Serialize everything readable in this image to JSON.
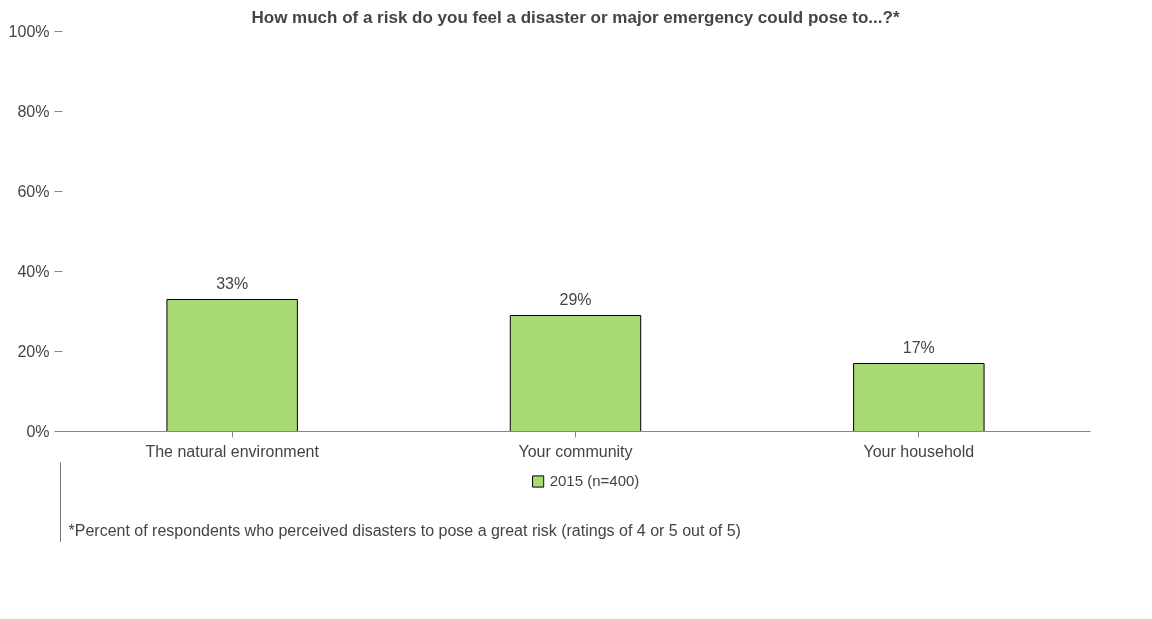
{
  "chart_data": {
    "type": "bar",
    "title": "How much of a risk do you feel a disaster or major emergency could pose to...?*",
    "categories": [
      "The natural environment",
      "Your community",
      "Your household"
    ],
    "series": [
      {
        "name": "2015 (n=400)",
        "color": "#a9d975",
        "values": [
          33,
          29,
          17
        ],
        "value_labels": [
          "33%",
          "29%",
          "17%"
        ]
      }
    ],
    "ylim": [
      0,
      100
    ],
    "yticks": [
      {
        "value": 0,
        "label": "0%"
      },
      {
        "value": 20,
        "label": "20%"
      },
      {
        "value": 40,
        "label": "40%"
      },
      {
        "value": 60,
        "label": "60%"
      },
      {
        "value": 80,
        "label": "80%"
      },
      {
        "value": 100,
        "label": "100%"
      }
    ],
    "grid": false,
    "legend": "bottom",
    "annotations": [
      "*Percent of respondents who perceived disasters to pose a great risk (ratings of 4 or 5 out of 5)"
    ]
  }
}
